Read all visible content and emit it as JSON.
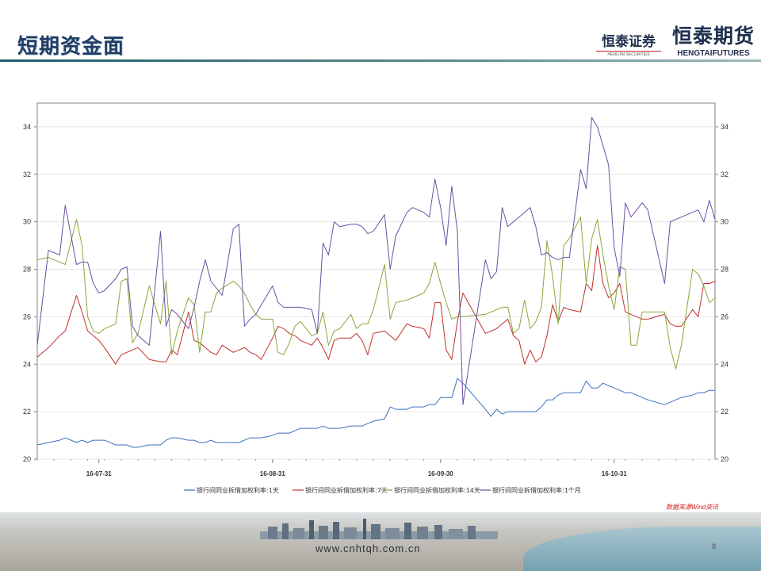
{
  "header": {
    "title": "短期资金面",
    "logo1_cn": "恒泰证券",
    "logo1_en": "HENGTAI SECURITIES",
    "logo2_cn": "恒泰期货",
    "logo2_en": "HENGTAIFUTURES"
  },
  "source_note": "数据来源Wind资讯",
  "footer": {
    "url": "www.cnhtqh.com.cn",
    "page": "8"
  },
  "colors": {
    "series1": "#3b6fbf",
    "series2": "#c0302a",
    "series3": "#86a83a",
    "series4": "#6b4fa3"
  },
  "chart_data": {
    "type": "line",
    "title": "",
    "ylim": [
      20,
      35
    ],
    "yticks": [
      20,
      22,
      24,
      26,
      28,
      30,
      32,
      34
    ],
    "xticks": [
      "16-07-31",
      "16-08-31",
      "16-09-30",
      "16-10-31"
    ],
    "x_range_days": [
      0,
      121
    ],
    "x_tick_days": [
      11,
      42,
      72,
      103
    ],
    "grid": true,
    "legend_position": "bottom",
    "x": [
      0,
      2,
      4,
      5,
      7,
      8,
      9,
      10,
      11,
      12,
      14,
      15,
      16,
      17,
      18,
      20,
      22,
      23,
      24,
      25,
      27,
      28,
      29,
      30,
      31,
      32,
      33,
      35,
      36,
      37,
      38,
      39,
      40,
      42,
      43,
      44,
      45,
      46,
      47,
      49,
      50,
      51,
      52,
      53,
      54,
      56,
      57,
      58,
      59,
      60,
      62,
      63,
      64,
      66,
      67,
      69,
      70,
      71,
      72,
      73,
      74,
      75,
      76,
      80,
      81,
      82,
      83,
      84,
      85,
      86,
      87,
      88,
      89,
      90,
      91,
      92,
      93,
      94,
      95,
      97,
      98,
      99,
      100,
      101,
      102,
      103,
      104,
      105,
      106,
      107,
      108,
      109,
      112,
      113,
      114,
      115,
      117,
      118,
      119,
      120,
      121
    ],
    "series": [
      {
        "name": "银行间同业拆借加权利率:1天",
        "values": [
          20.6,
          20.7,
          20.8,
          20.9,
          20.7,
          20.8,
          20.7,
          20.8,
          20.8,
          20.8,
          20.6,
          20.6,
          20.6,
          20.5,
          20.5,
          20.6,
          20.6,
          20.8,
          20.9,
          20.9,
          20.8,
          20.8,
          20.7,
          20.7,
          20.8,
          20.7,
          20.7,
          20.7,
          20.7,
          20.8,
          20.9,
          20.9,
          20.9,
          21.0,
          21.1,
          21.1,
          21.1,
          21.2,
          21.3,
          21.3,
          21.3,
          21.4,
          21.3,
          21.3,
          21.3,
          21.4,
          21.4,
          21.4,
          21.5,
          21.6,
          21.7,
          22.2,
          22.1,
          22.1,
          22.2,
          22.2,
          22.3,
          22.3,
          22.6,
          22.6,
          22.6,
          23.4,
          23.2,
          22.1,
          21.8,
          22.1,
          21.9,
          22.0,
          22.0,
          22.0,
          22.0,
          22.0,
          22.0,
          22.2,
          22.5,
          22.5,
          22.7,
          22.8,
          22.8,
          22.8,
          23.3,
          23.0,
          23.0,
          23.2,
          23.1,
          23.0,
          22.9,
          22.8,
          22.8,
          22.7,
          22.6,
          22.5,
          22.3,
          22.4,
          22.5,
          22.6,
          22.7,
          22.8,
          22.8,
          22.9,
          22.9
        ]
      },
      {
        "name": "银行间同业拆借加权利率:7天",
        "values": [
          24.3,
          24.7,
          25.2,
          25.4,
          26.9,
          26.2,
          25.4,
          25.2,
          25.0,
          24.7,
          24.0,
          24.4,
          24.5,
          24.6,
          24.7,
          24.2,
          24.1,
          24.1,
          24.6,
          24.4,
          26.2,
          25.0,
          24.9,
          24.7,
          24.5,
          24.4,
          24.8,
          24.5,
          24.6,
          24.7,
          24.5,
          24.4,
          24.2,
          25.1,
          25.6,
          25.5,
          25.3,
          25.2,
          25.0,
          24.8,
          25.1,
          24.7,
          24.2,
          25.0,
          25.1,
          25.1,
          25.3,
          25.0,
          24.4,
          25.3,
          25.4,
          25.2,
          25.0,
          25.7,
          25.6,
          25.5,
          25.1,
          26.6,
          26.6,
          24.6,
          24.2,
          25.8,
          27.0,
          25.3,
          25.4,
          25.5,
          25.7,
          25.9,
          25.2,
          25.0,
          24.0,
          24.6,
          24.1,
          24.3,
          25.2,
          26.5,
          25.8,
          26.4,
          26.3,
          26.2,
          27.4,
          27.1,
          29.0,
          27.4,
          26.8,
          27.0,
          27.4,
          26.2,
          26.1,
          26.0,
          25.9,
          25.9,
          26.1,
          25.7,
          25.6,
          25.6,
          26.3,
          26.0,
          27.4,
          27.4,
          27.5
        ]
      },
      {
        "name": "银行间同业拆借加权利率:14天",
        "values": [
          28.4,
          28.5,
          28.3,
          28.2,
          30.1,
          29.0,
          26.0,
          25.4,
          25.3,
          25.5,
          25.7,
          27.5,
          27.6,
          24.9,
          25.3,
          27.3,
          25.7,
          27.5,
          24.4,
          25.4,
          26.8,
          26.5,
          24.5,
          26.2,
          26.2,
          27.0,
          27.2,
          27.5,
          27.3,
          27.0,
          26.5,
          26.1,
          25.9,
          25.9,
          24.5,
          24.4,
          24.9,
          25.6,
          25.8,
          25.2,
          25.3,
          26.2,
          24.8,
          25.4,
          25.5,
          26.1,
          25.5,
          25.7,
          25.7,
          26.3,
          28.2,
          25.9,
          26.6,
          26.7,
          26.8,
          27.0,
          27.4,
          28.3,
          27.4,
          26.6,
          25.9,
          26.0,
          26.0,
          26.1,
          26.2,
          26.3,
          26.4,
          26.4,
          25.3,
          25.5,
          26.7,
          25.5,
          25.8,
          26.4,
          29.2,
          27.7,
          25.7,
          29.0,
          29.3,
          30.2,
          27.4,
          29.3,
          30.1,
          28.6,
          27.3,
          26.3,
          28.1,
          28.0,
          24.8,
          24.8,
          26.2,
          26.2,
          26.2,
          24.7,
          23.8,
          24.8,
          28.0,
          27.8,
          27.3,
          26.6,
          26.8
        ]
      },
      {
        "name": "银行间同业拆借加权利率:1个月",
        "values": [
          24.8,
          28.8,
          28.6,
          30.7,
          28.2,
          28.3,
          28.3,
          27.4,
          27.0,
          27.1,
          27.6,
          28.0,
          28.1,
          25.6,
          25.2,
          24.8,
          29.6,
          25.6,
          26.3,
          26.1,
          25.5,
          26.4,
          27.5,
          28.4,
          27.5,
          27.2,
          26.9,
          29.7,
          29.9,
          25.6,
          25.9,
          26.1,
          26.5,
          27.3,
          26.6,
          26.4,
          26.4,
          26.4,
          26.4,
          26.3,
          25.3,
          29.1,
          28.6,
          30.0,
          29.8,
          29.9,
          29.9,
          29.8,
          29.5,
          29.6,
          30.3,
          28.0,
          29.4,
          30.4,
          30.6,
          30.4,
          30.2,
          31.8,
          30.6,
          29.0,
          31.5,
          29.6,
          22.3,
          28.4,
          27.6,
          27.9,
          30.6,
          29.8,
          30.0,
          30.2,
          30.4,
          30.6,
          29.8,
          28.6,
          28.7,
          28.5,
          28.4,
          28.5,
          28.5,
          32.2,
          31.4,
          34.4,
          34.0,
          33.2,
          32.4,
          28.9,
          27.7,
          30.8,
          30.2,
          30.5,
          30.8,
          30.5,
          27.4,
          30.0,
          30.1,
          30.2,
          30.4,
          30.5,
          30.0,
          30.9,
          30.1
        ]
      }
    ]
  }
}
